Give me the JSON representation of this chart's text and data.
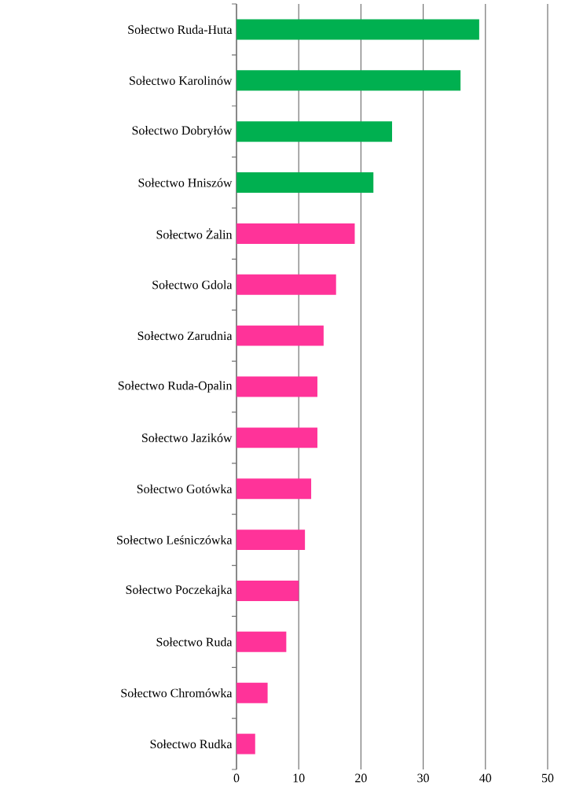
{
  "chart_data": {
    "type": "bar",
    "orientation": "horizontal",
    "categories": [
      "Sołectwo Ruda-Huta",
      "Sołectwo Karolinów",
      "Sołectwo Dobryłów",
      "Sołectwo Hniszów",
      "Sołectwo Żalin",
      "Sołectwo Gdola",
      "Sołectwo Zarudnia",
      "Sołectwo Ruda-Opalin",
      "Sołectwo Jazików",
      "Sołectwo Gotówka",
      "Sołectwo Leśniczówka",
      "Sołectwo Poczekajka",
      "Sołectwo Ruda",
      "Sołectwo Chromówka",
      "Sołectwo Rudka"
    ],
    "values": [
      39,
      36,
      25,
      22,
      19,
      16,
      14,
      13,
      13,
      12,
      11,
      10,
      8,
      5,
      3
    ],
    "colors": [
      "#00b050",
      "#00b050",
      "#00b050",
      "#00b050",
      "#ff3399",
      "#ff3399",
      "#ff3399",
      "#ff3399",
      "#ff3399",
      "#ff3399",
      "#ff3399",
      "#ff3399",
      "#ff3399",
      "#ff3399",
      "#ff3399"
    ],
    "xlim": [
      0,
      50
    ],
    "xticks": [
      0,
      10,
      20,
      30,
      40,
      50
    ],
    "grid": "x"
  }
}
